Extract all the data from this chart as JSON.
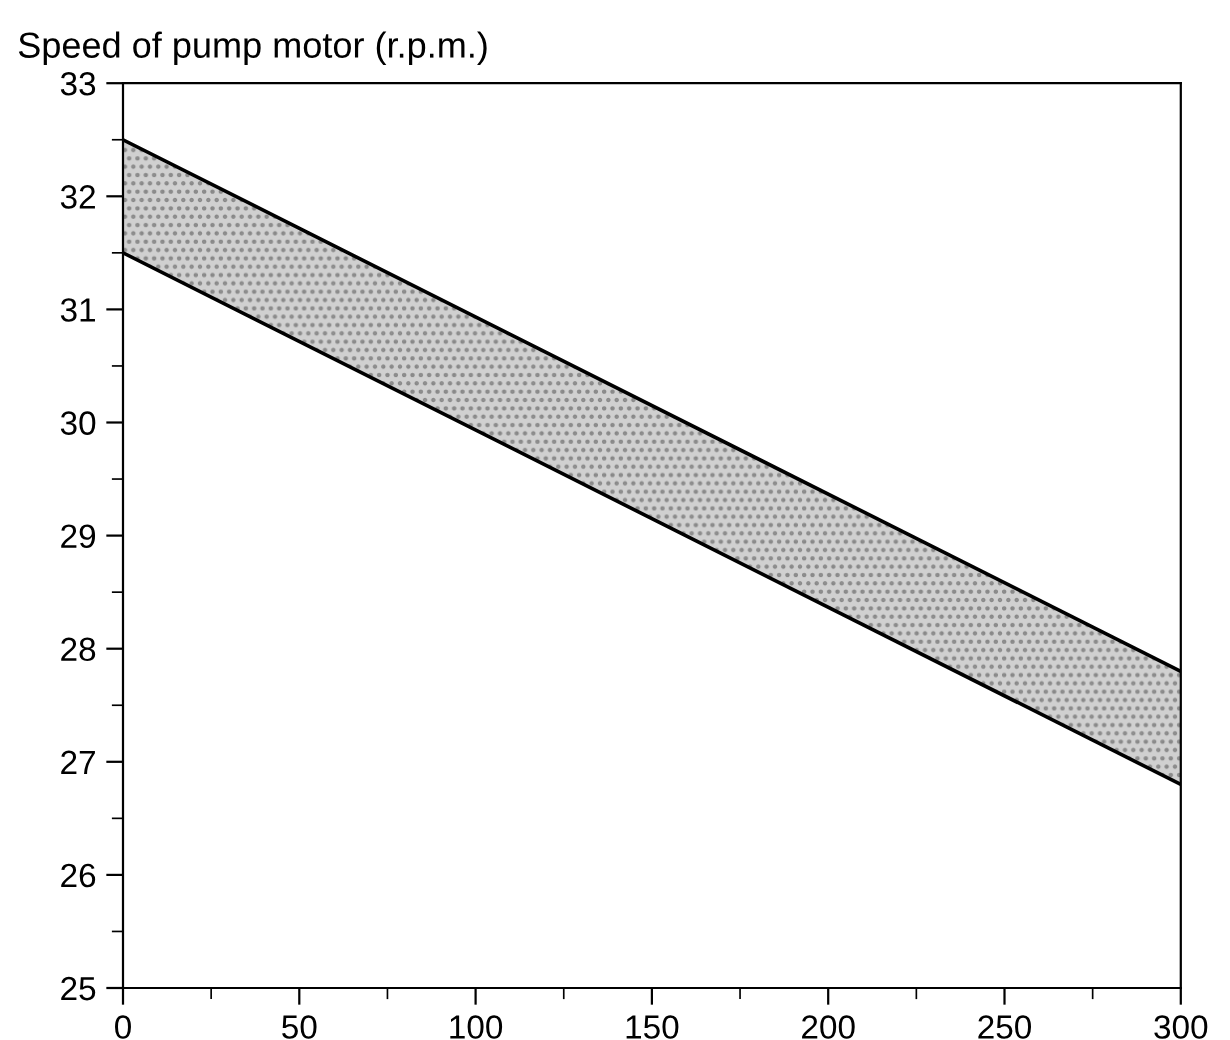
{
  "chart_data": {
    "type": "line",
    "ylabel": "Speed of pump motor (r.p.m.)",
    "x": [
      0,
      300
    ],
    "series": [
      {
        "color": "#000000",
        "values": [
          32.5,
          27.8
        ],
        "lower": [
          31.5,
          26.8
        ],
        "upper": [
          32.5,
          27.8
        ]
      },
      {
        "color": "#000000",
        "values": [
          31.5,
          26.8
        ]
      }
    ],
    "xlim": [
      0,
      300
    ],
    "xticks": [
      0,
      50,
      100,
      150,
      200,
      250,
      300
    ],
    "ylim": [
      25,
      33
    ],
    "yticks": [
      25,
      26,
      27,
      28,
      29,
      30,
      31,
      32,
      33
    ],
    "grid": false,
    "legend": false
  }
}
